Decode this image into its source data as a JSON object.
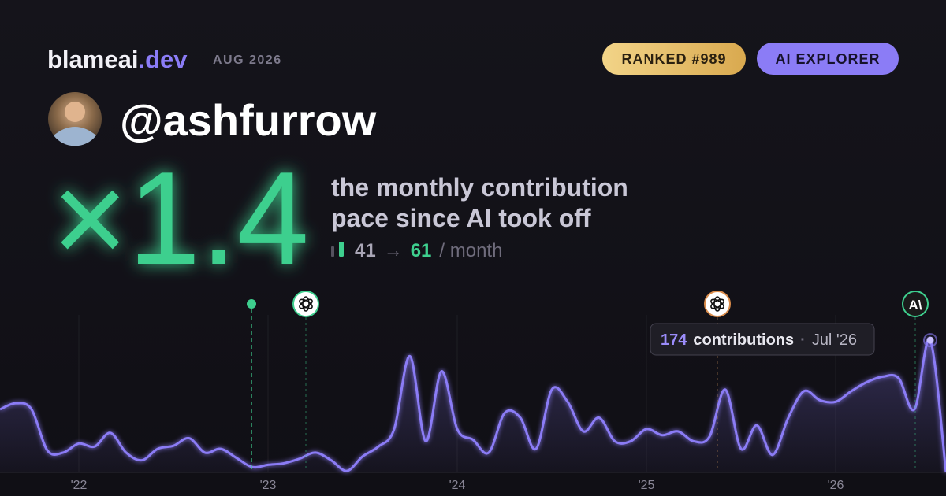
{
  "brand": {
    "name": "blameai",
    "tld": ".dev",
    "period": "AUG 2026"
  },
  "badges": [
    "RANKED #989",
    "AI EXPLORER"
  ],
  "user": {
    "handle": "@ashfurrow"
  },
  "headline": {
    "multiplier": "×1.4",
    "caption": [
      "the monthly contribution",
      "pace since AI took off"
    ],
    "before": "41",
    "arrow": "→",
    "after": "61",
    "unit": "/ month"
  },
  "chart_data": {
    "type": "line",
    "categories": [
      null,
      null,
      null,
      null,
      null,
      "'22",
      null,
      null,
      null,
      null,
      null,
      null,
      null,
      null,
      null,
      null,
      null,
      "'23",
      null,
      null,
      null,
      null,
      null,
      null,
      null,
      null,
      null,
      null,
      null,
      "'24",
      null,
      null,
      null,
      null,
      null,
      null,
      null,
      null,
      null,
      null,
      null,
      "'25",
      null,
      null,
      null,
      null,
      null,
      null,
      null,
      null,
      null,
      null,
      null,
      "'26",
      null,
      null,
      null,
      null,
      null,
      null,
      null
    ],
    "values": [
      83,
      91,
      83,
      29,
      26,
      38,
      34,
      52,
      26,
      16,
      31,
      35,
      45,
      26,
      31,
      19,
      7,
      10,
      12,
      18,
      26,
      16,
      2,
      21,
      34,
      57,
      153,
      41,
      133,
      57,
      43,
      26,
      78,
      72,
      31,
      109,
      93,
      54,
      72,
      41,
      41,
      57,
      49,
      54,
      41,
      47,
      109,
      31,
      62,
      23,
      72,
      107,
      95,
      93,
      107,
      119,
      126,
      124,
      83,
      174,
      0
    ],
    "color": "#8b7cf6",
    "ylim": [
      0,
      200
    ],
    "markers": [
      "A\\"
    ],
    "tooltip": {
      "unit": "contributions",
      "separator": "·",
      "label": "Jul '26"
    }
  }
}
